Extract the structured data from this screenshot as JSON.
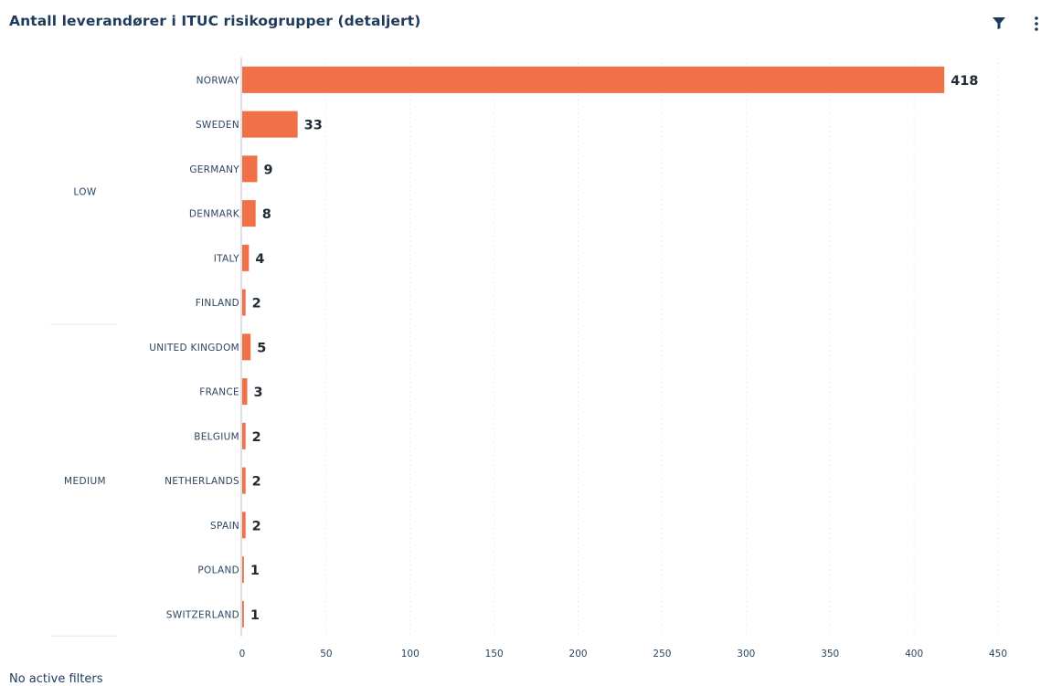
{
  "header": {
    "title": "Antall leverandører i ITUC risikogrupper (detaljert)",
    "filter_icon": "filter-icon",
    "menu_icon": "more-vertical-icon"
  },
  "footer": {
    "filters_text": "No active filters"
  },
  "colors": {
    "bar": "#f07048",
    "title": "#1e3b5a",
    "label": "#2b4560",
    "value": "#1f2a36",
    "grid": "#eeeeee"
  },
  "chart_data": {
    "type": "bar",
    "orientation": "horizontal",
    "title": "Antall leverandører i ITUC risikogrupper (detaljert)",
    "groups": [
      {
        "name": "LOW",
        "categories": [
          "NORWAY",
          "SWEDEN",
          "GERMANY",
          "DENMARK",
          "ITALY",
          "FINLAND"
        ],
        "values": [
          418,
          33,
          9,
          8,
          4,
          2
        ]
      },
      {
        "name": "MEDIUM",
        "categories": [
          "UNITED KINGDOM",
          "FRANCE",
          "BELGIUM",
          "NETHERLANDS",
          "SPAIN",
          "POLAND",
          "SWITZERLAND"
        ],
        "values": [
          5,
          3,
          2,
          2,
          2,
          1,
          1
        ]
      }
    ],
    "xlim": [
      0,
      450
    ],
    "xticks": [
      0,
      50,
      100,
      150,
      200,
      250,
      300,
      350,
      400,
      450
    ],
    "grid": true,
    "legend": "none"
  }
}
